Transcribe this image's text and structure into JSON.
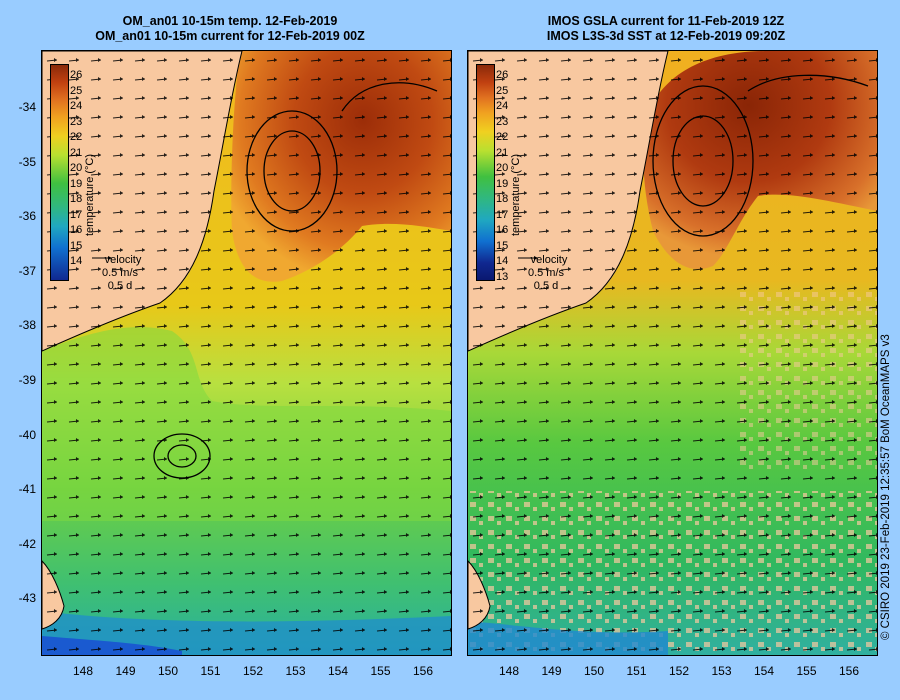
{
  "left_panel": {
    "title_line1": "OM_an01 10-15m temp. 12-Feb-2019",
    "title_line2": "OM_an01 10-15m current for 12-Feb-2019 00Z",
    "colorbar_ticks": [
      "26",
      "25",
      "24",
      "23",
      "22",
      "21",
      "20",
      "19",
      "18",
      "17",
      "16",
      "15",
      "14"
    ],
    "colorbar_title": "temperature (°C)",
    "velocity_label": "velocity",
    "velocity_scale": "0.5 m/s",
    "velocity_time": "0.5 d"
  },
  "right_panel": {
    "title_line1": "IMOS GSLA current for 11-Feb-2019 12Z",
    "title_line2": "IMOS L3S-3d SST at 12-Feb-2019 09:20Z",
    "colorbar_ticks": [
      "26",
      "25",
      "24",
      "23",
      "22",
      "21",
      "20",
      "19",
      "18",
      "17",
      "16",
      "15",
      "14",
      "13"
    ],
    "colorbar_title": "temperature (°C)",
    "velocity_label": "velocity",
    "velocity_scale": "0.5 m/s",
    "velocity_time": "0.5 d"
  },
  "axes": {
    "y_ticks": [
      "-34",
      "-35",
      "-36",
      "-37",
      "-38",
      "-39",
      "-40",
      "-41",
      "-42",
      "-43"
    ],
    "x_ticks": [
      "148",
      "149",
      "150",
      "151",
      "152",
      "153",
      "154",
      "155",
      "156"
    ]
  },
  "colors": {
    "background": "#99ccff",
    "land": "#f8c8a0",
    "warm": "#b03a10",
    "mid": "#f0c020",
    "cool": "#40c040",
    "cold": "#1060d0"
  },
  "side_credit": "© CSIRO 2019   23-Feb-2019 12:35:57 BoM OceanMAPS v3"
}
